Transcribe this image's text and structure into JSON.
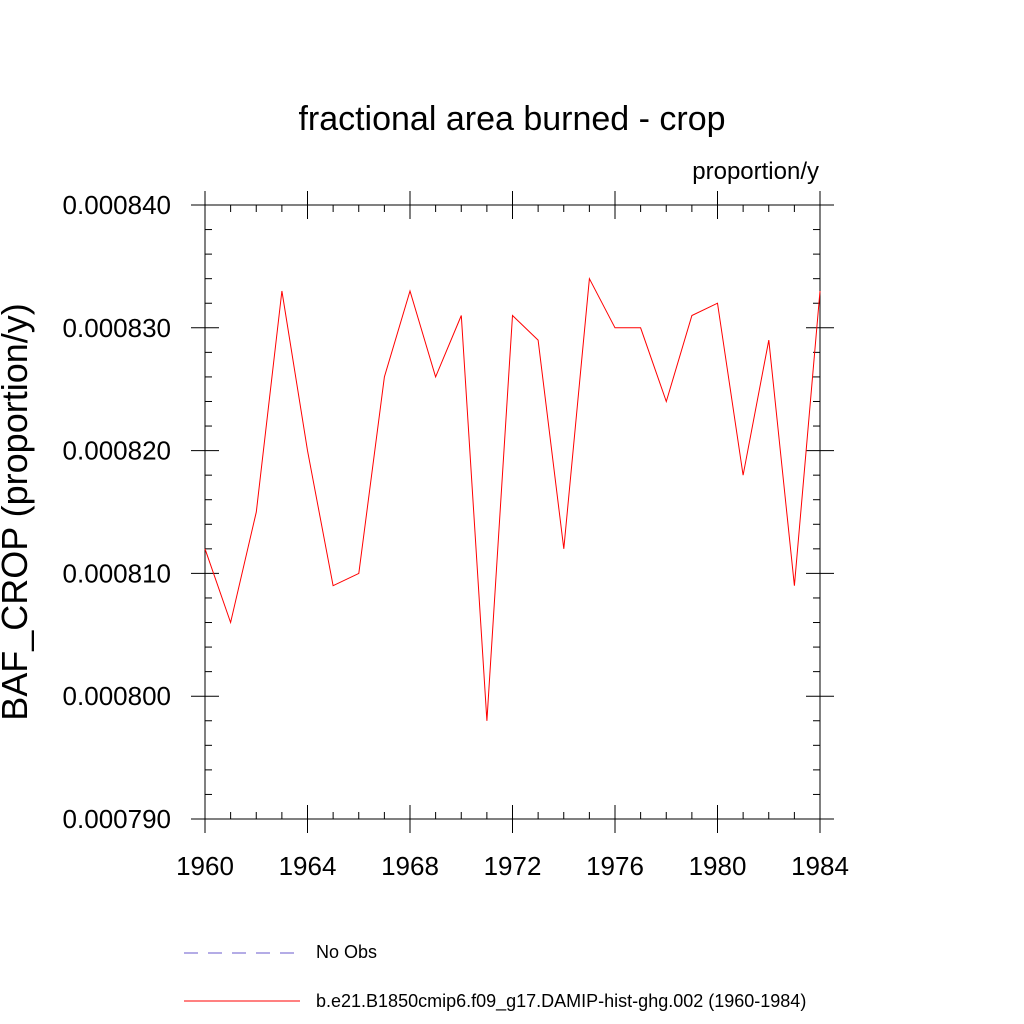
{
  "chart_data": {
    "type": "line",
    "title": "fractional area burned - crop",
    "units_label": "proportion/y",
    "ylabel": "BAF_CROP  (proportion/y)",
    "xlabel": "",
    "xlim": [
      1960,
      1984
    ],
    "ylim": [
      0.00079,
      0.00084
    ],
    "x_ticks": [
      1960,
      1964,
      1968,
      1972,
      1976,
      1980,
      1984
    ],
    "x_tick_labels": [
      "1960",
      "1964",
      "1968",
      "1972",
      "1976",
      "1980",
      "1984"
    ],
    "y_ticks": [
      0.00079,
      0.0008,
      0.00081,
      0.00082,
      0.00083,
      0.00084
    ],
    "y_tick_labels": [
      "0.000790",
      "0.000800",
      "0.000810",
      "0.000820",
      "0.000830",
      "0.000840"
    ],
    "grid": false,
    "legend_position": "bottom",
    "series": [
      {
        "name": "b.e21.B1850cmip6.f09_g17.DAMIP-hist-ghg.002 (1960-1984)",
        "color": "#ff0000",
        "style": "solid",
        "x": [
          1960,
          1961,
          1962,
          1963,
          1964,
          1965,
          1966,
          1967,
          1968,
          1969,
          1970,
          1971,
          1972,
          1973,
          1974,
          1975,
          1976,
          1977,
          1978,
          1979,
          1980,
          1981,
          1982,
          1983,
          1984
        ],
        "y": [
          0.000812,
          0.000806,
          0.000815,
          0.000833,
          0.00082,
          0.000809,
          0.00081,
          0.000826,
          0.000833,
          0.000826,
          0.000831,
          0.000798,
          0.000831,
          0.000829,
          0.000812,
          0.000834,
          0.00083,
          0.00083,
          0.000824,
          0.000831,
          0.000832,
          0.000818,
          0.000829,
          0.000809,
          0.000833
        ]
      },
      {
        "name": "No Obs",
        "color": "#6a5acd",
        "style": "dashed",
        "x": [],
        "y": []
      }
    ]
  }
}
